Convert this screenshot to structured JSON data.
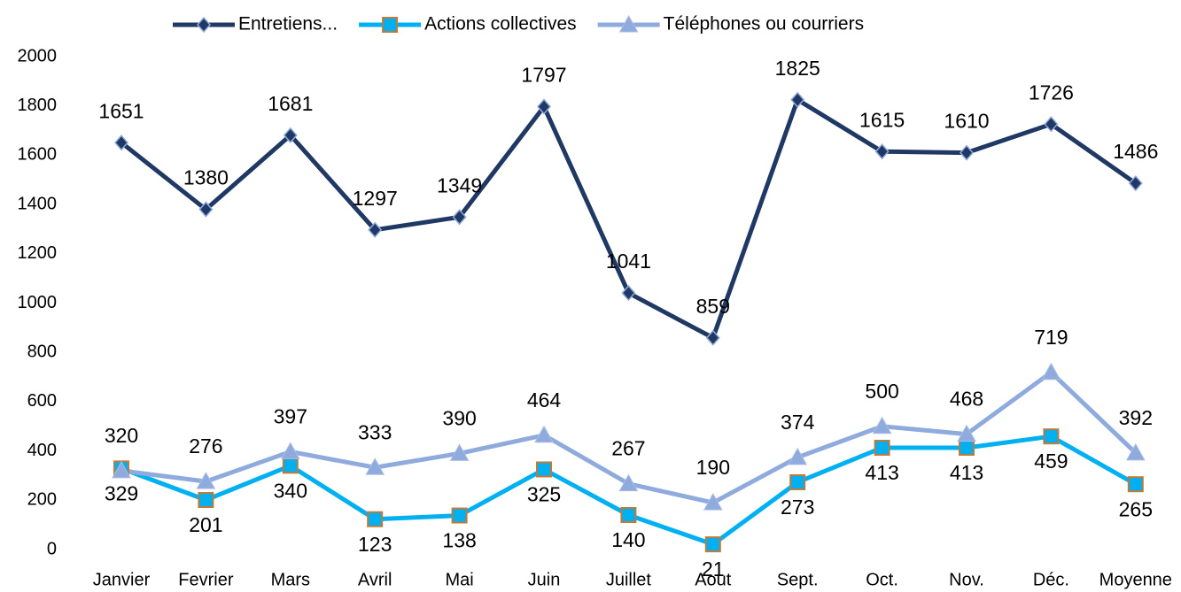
{
  "chart_data": {
    "type": "line",
    "categories": [
      "Janvier",
      "Fevrier",
      "Mars",
      "Avril",
      "Mai",
      "Juin",
      "Juillet",
      "Aout",
      "Sept.",
      "Oct.",
      "Nov.",
      "Déc.",
      "Moyenne"
    ],
    "series": [
      {
        "name": "Entretiens...",
        "color": "#1f3864",
        "marker": "diamond",
        "values": [
          1651,
          1380,
          1681,
          1297,
          1349,
          1797,
          1041,
          859,
          1825,
          1615,
          1610,
          1726,
          1486
        ]
      },
      {
        "name": "Actions collectives",
        "color": "#00b0f0",
        "marker": "square",
        "values": [
          329,
          201,
          340,
          123,
          138,
          325,
          140,
          21,
          273,
          413,
          413,
          459,
          265
        ]
      },
      {
        "name": "Téléphones ou courriers",
        "color": "#8faadc",
        "marker": "triangle",
        "values": [
          320,
          276,
          397,
          333,
          390,
          464,
          267,
          190,
          374,
          500,
          468,
          719,
          392
        ]
      }
    ],
    "ylim": [
      0,
      2000
    ],
    "yticks": [
      0,
      200,
      400,
      600,
      800,
      1000,
      1200,
      1400,
      1600,
      1800,
      2000
    ],
    "legend": "top"
  }
}
